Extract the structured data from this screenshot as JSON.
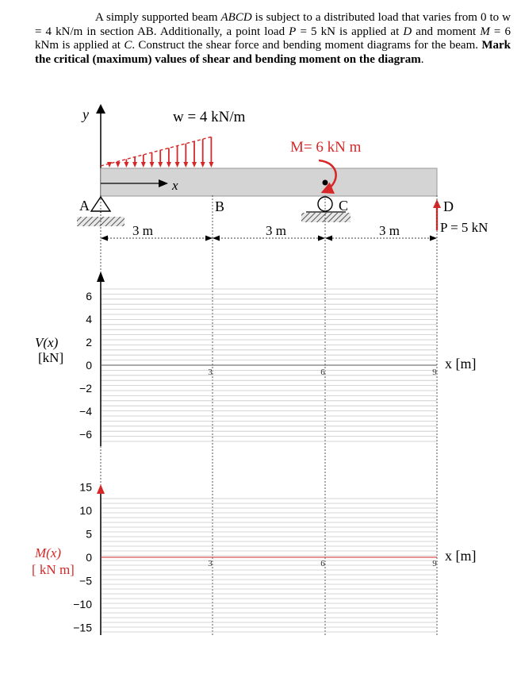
{
  "problem": {
    "s1": "A simply supported beam ",
    "beam_name": "ABCD",
    "s2": " is subject to a distributed load that varies from 0 to w = 4 kN/m in section AB. Additionally, a point load ",
    "p_sym": "P",
    "s3": " = 5 kN is applied at ",
    "d_sym": "D",
    "s4": " and moment ",
    "m_sym": "M",
    "s5": " = 6 kNm is applied at ",
    "c_sym": "C",
    "s6": ". Construct the shear force and bending moment diagrams for the beam. ",
    "bold": "Mark the critical (maximum) values of shear and bending moment on the diagram",
    "end": "."
  },
  "beam": {
    "w_label": "w = 4 kN/m",
    "m_label": "M= 6 kN m",
    "p_label": "P = 5 kN",
    "y_axis": "y",
    "x_axis": "x",
    "points": [
      "A",
      "B",
      "C",
      "D"
    ],
    "spans": [
      "3 m",
      "3 m",
      "3 m"
    ]
  },
  "shear_plot": {
    "label": "V(x)",
    "unit": "[kN]",
    "yticks": [
      "6",
      "4",
      "2",
      "0",
      "−2",
      "−4",
      "−6"
    ],
    "xticks": [
      "3",
      "6",
      "9"
    ],
    "xlabel": "x [m]"
  },
  "moment_plot": {
    "label": "M(x)",
    "unit": "[ kN m]",
    "yticks": [
      "15",
      "10",
      "5",
      "0",
      "−5",
      "−10",
      "−15"
    ],
    "xticks": [
      "3",
      "6",
      "9"
    ],
    "xlabel": "x [m]"
  },
  "colors": {
    "load": "#d62828",
    "beam_fill": "#d4d4d4",
    "grid": "#c8c8c8",
    "axis": "#000000"
  }
}
